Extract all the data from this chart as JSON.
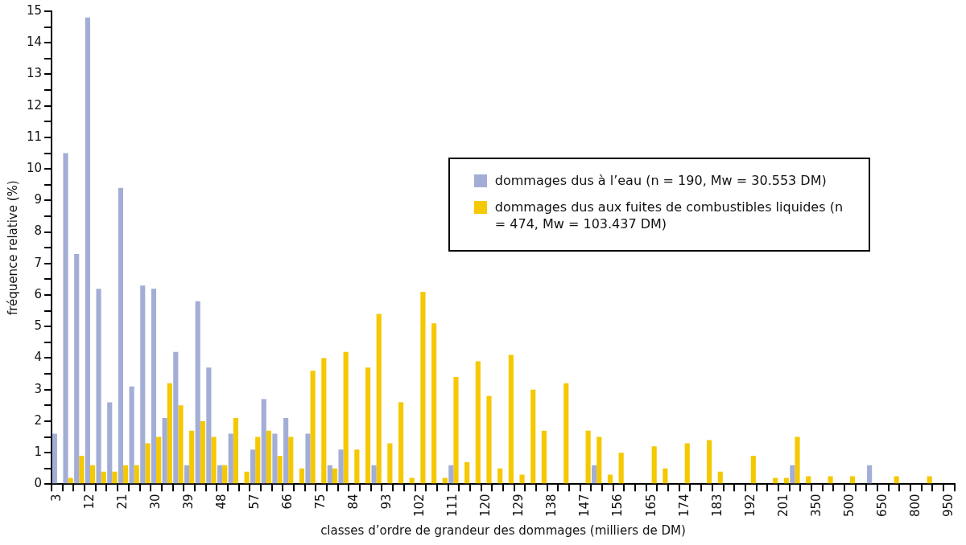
{
  "chart_data": {
    "type": "bar",
    "xlabel": "classes d’ordre de grandeur des dommages (milliers de DM)",
    "ylabel": "fréquence relative (%)",
    "categories": [
      "3",
      null,
      null,
      "12",
      null,
      null,
      "21",
      null,
      null,
      "30",
      null,
      null,
      "39",
      null,
      null,
      "48",
      null,
      null,
      "57",
      null,
      null,
      "66",
      null,
      null,
      "75",
      null,
      null,
      "84",
      null,
      null,
      "93",
      null,
      null,
      "102",
      null,
      null,
      "111",
      null,
      null,
      "120",
      null,
      null,
      "129",
      null,
      null,
      "138",
      null,
      null,
      "147",
      null,
      null,
      "156",
      null,
      null,
      "165",
      null,
      null,
      "174",
      null,
      null,
      "183",
      null,
      null,
      "192",
      null,
      null,
      "201",
      null,
      null,
      "350",
      null,
      null,
      "500",
      null,
      null,
      "650",
      null,
      null,
      "800",
      null,
      null,
      "950"
    ],
    "series": [
      {
        "name": "dommages dus à l’eau (n = 190, Mw = 30.553 DM)",
        "color": "#a3aed6",
        "values": [
          1.6,
          10.5,
          7.3,
          14.8,
          6.2,
          2.6,
          9.4,
          3.1,
          6.3,
          6.2,
          2.1,
          4.2,
          0.6,
          5.8,
          3.7,
          0.6,
          1.6,
          0,
          1.1,
          2.7,
          1.6,
          2.1,
          0,
          1.6,
          0,
          0.6,
          1.1,
          0,
          0,
          0.6,
          0,
          0,
          0,
          0,
          0,
          0,
          0.6,
          0,
          0,
          0,
          0,
          0,
          0,
          0,
          0,
          0,
          0,
          0,
          0,
          0.6,
          0,
          0,
          0,
          0,
          0,
          0,
          0,
          0,
          0,
          0,
          0,
          0,
          0,
          0,
          0,
          0,
          0,
          0.6,
          0,
          0,
          0,
          0,
          0,
          0,
          0.6,
          0,
          0,
          0,
          0,
          0,
          0,
          null
        ]
      },
      {
        "name": "dommages dus aux fuites de combustibles liquides (n = 474, Mw = 103.437 DM)",
        "color": "#f5c800",
        "values": [
          0,
          0.2,
          0.9,
          0.6,
          0.4,
          0.4,
          0.6,
          0.6,
          1.3,
          1.5,
          3.2,
          2.5,
          1.7,
          2.0,
          1.5,
          0.6,
          2.1,
          0.4,
          1.5,
          1.7,
          0.9,
          1.5,
          0.5,
          3.6,
          4.0,
          0.5,
          4.2,
          1.1,
          3.7,
          5.4,
          1.3,
          2.6,
          0.2,
          6.1,
          5.1,
          0.2,
          3.4,
          0.7,
          3.9,
          2.8,
          0.5,
          4.1,
          0.3,
          3.0,
          1.7,
          0,
          3.2,
          0,
          1.7,
          1.5,
          0.3,
          1.0,
          0,
          0,
          1.2,
          0.5,
          0,
          1.3,
          0,
          1.4,
          0.4,
          0,
          0,
          0.9,
          0,
          0.2,
          0.2,
          1.5,
          0.25,
          0,
          0.25,
          0,
          0.25,
          0,
          0,
          0,
          0.25,
          0,
          0,
          0.25,
          0,
          null
        ]
      }
    ],
    "ylim": [
      0,
      15
    ],
    "yticks": [
      0,
      {
        "value": 0.5,
        "label": null
      },
      1,
      {
        "value": 1.5,
        "label": null
      },
      2,
      {
        "value": 2.5,
        "label": null
      },
      3,
      {
        "value": 3.5,
        "label": null
      },
      4,
      {
        "value": 4.5,
        "label": null
      },
      5,
      {
        "value": 5.5,
        "label": null
      },
      6,
      {
        "value": 6.5,
        "label": null
      },
      7,
      {
        "value": 7.5,
        "label": null
      },
      8,
      {
        "value": 8.5,
        "label": null
      },
      9,
      {
        "value": 9.5,
        "label": null
      },
      10,
      {
        "value": 10.5,
        "label": null
      },
      11,
      {
        "value": 11.5,
        "label": null
      },
      12,
      {
        "value": 12.5,
        "label": null
      },
      13,
      {
        "value": 13.5,
        "label": null
      },
      14,
      {
        "value": 14.5,
        "label": null
      },
      15
    ],
    "grid": false,
    "legend": "top right"
  }
}
